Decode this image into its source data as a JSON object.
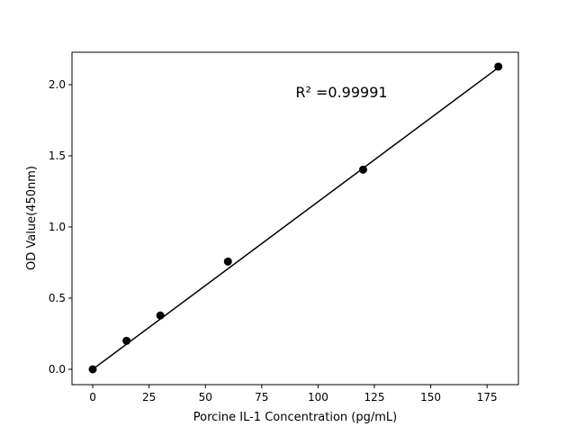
{
  "chart_data": {
    "type": "scatter",
    "title": "",
    "xlabel": "Porcine IL-1 Concentration (pg/mL)",
    "ylabel": "OD Value(450nm)",
    "xlim": [
      -9.2,
      188.9
    ],
    "ylim": [
      -0.108,
      2.228
    ],
    "x_ticks": [
      0,
      25,
      50,
      75,
      100,
      125,
      150,
      175
    ],
    "x_tick_labels": [
      "0",
      "25",
      "50",
      "75",
      "100",
      "125",
      "150",
      "175"
    ],
    "y_ticks": [
      0,
      0.5,
      1.0,
      1.5,
      2.0
    ],
    "y_tick_labels": [
      "0.0",
      "0.5",
      "1.0",
      "1.5",
      "2.0"
    ],
    "grid": false,
    "points": {
      "x": [
        0,
        15,
        30,
        60,
        120,
        180
      ],
      "y": [
        0.0,
        0.2,
        0.378,
        0.757,
        1.403,
        2.127
      ],
      "color": "#000000"
    },
    "fit_line": {
      "x": [
        0,
        180
      ],
      "y": [
        0.0,
        2.12
      ],
      "color": "#000000"
    },
    "annotation": {
      "text": "R² =0.99991",
      "x": 90,
      "y": 1.95
    }
  }
}
